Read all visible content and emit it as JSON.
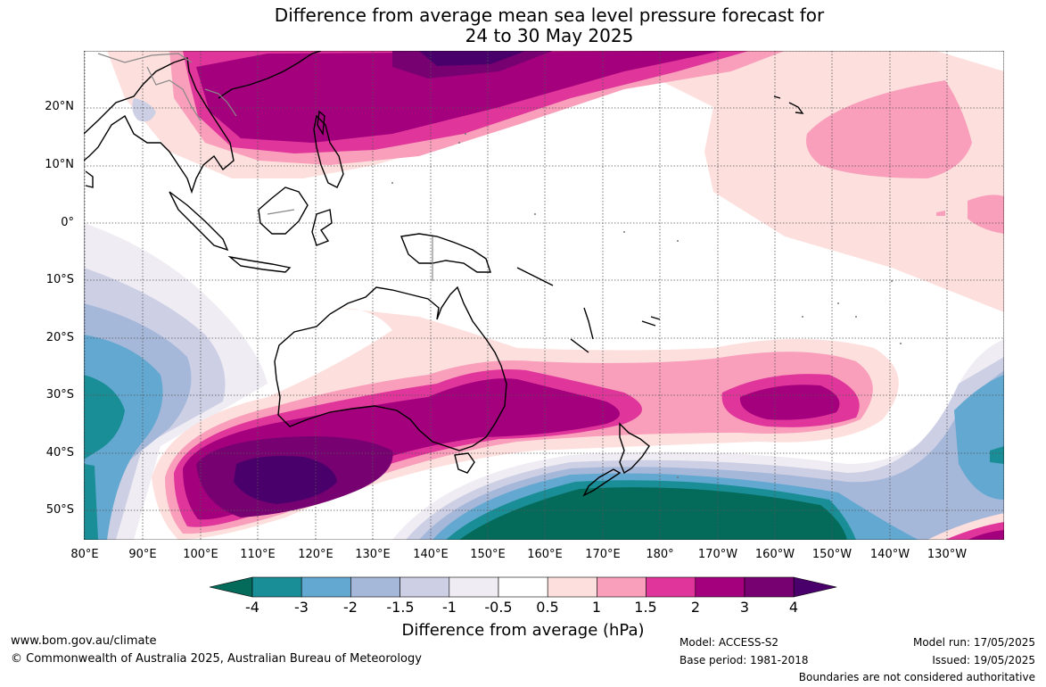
{
  "title_line1": "Difference from average mean sea level pressure forecast for",
  "title_line2": "24 to 30 May 2025",
  "lat_labels": [
    "20°N",
    "10°N",
    "0°",
    "10°S",
    "20°S",
    "30°S",
    "40°S",
    "50°S"
  ],
  "lon_labels": [
    "80°E",
    "90°E",
    "100°E",
    "110°E",
    "120°E",
    "130°E",
    "140°E",
    "150°E",
    "160°E",
    "170°E",
    "180°",
    "170°W",
    "160°W",
    "150°W",
    "140°W",
    "130°W"
  ],
  "colorbar": {
    "title": "Difference from average (hPa)",
    "tick_labels": [
      "-4",
      "-3",
      "-2",
      "-1.5",
      "-1",
      "-0.5",
      "0.5",
      "1",
      "1.5",
      "2",
      "3",
      "4"
    ],
    "colors": [
      "#046b5b",
      "#1a8e96",
      "#63a8d0",
      "#a6b8da",
      "#cdcfe5",
      "#efecf3",
      "#ffffff",
      "#fde0dd",
      "#f99fbb",
      "#e0359a",
      "#a4007e",
      "#780172",
      "#4a006a"
    ]
  },
  "footer": {
    "website": "www.bom.gov.au/climate",
    "copyright": "© Commonwealth of Australia 2025, Australian Bureau of Meteorology",
    "model": "Model: ACCESS-S2",
    "base_period": "Base period: 1981-2018",
    "model_run": "Model run: 17/05/2025",
    "issued": "Issued: 19/05/2025",
    "disclaimer": "Boundaries are not considered authoritative"
  }
}
